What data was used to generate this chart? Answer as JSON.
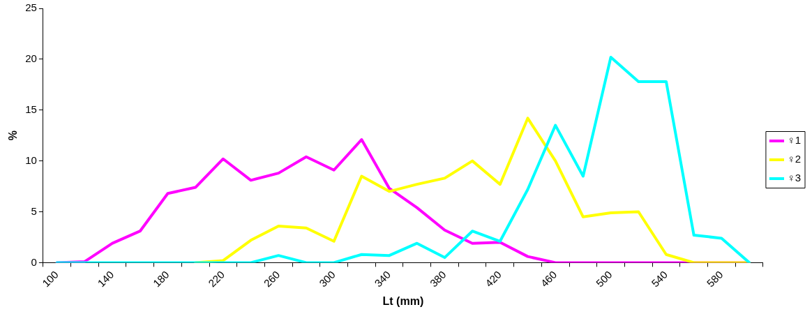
{
  "chart_data": {
    "type": "line",
    "xlabel": "Lt (mm)",
    "ylabel": "%",
    "categories": [
      "100",
      null,
      "140",
      null,
      "180",
      null,
      "220",
      null,
      "260",
      null,
      "300",
      null,
      "340",
      null,
      "380",
      null,
      "420",
      null,
      "460",
      null,
      "500",
      null,
      "540",
      null,
      "580",
      null
    ],
    "series": [
      {
        "name": "♀1",
        "color": "#ff00ff",
        "values": [
          0,
          0.1,
          1.9,
          3.1,
          6.8,
          7.4,
          10.2,
          8.1,
          8.8,
          10.4,
          9.1,
          12.1,
          7.3,
          5.4,
          3.2,
          1.9,
          2.0,
          0.6,
          0,
          0,
          0,
          0,
          0,
          0,
          0,
          0
        ]
      },
      {
        "name": "♀2",
        "color": "#ffff00",
        "values": [
          null,
          null,
          null,
          null,
          null,
          0,
          0.2,
          2.2,
          3.6,
          3.4,
          2.1,
          8.5,
          7.0,
          7.7,
          8.3,
          10.0,
          7.7,
          14.2,
          10.0,
          4.5,
          4.9,
          5.0,
          0.8,
          0,
          0,
          0
        ]
      },
      {
        "name": "♀3",
        "color": "#00ffff",
        "values": [
          0,
          0,
          0,
          0,
          0,
          0,
          0,
          0,
          0.7,
          0,
          0,
          0.8,
          0.7,
          1.9,
          0.5,
          3.1,
          2.1,
          7.2,
          13.5,
          8.5,
          20.2,
          17.8,
          17.8,
          2.7,
          2.4,
          0
        ]
      }
    ],
    "ylim": [
      0,
      25
    ],
    "yticks": [
      0,
      5,
      10,
      15,
      20,
      25
    ],
    "grid": false,
    "legend": "right",
    "marker": "none",
    "line_style": "solid"
  }
}
